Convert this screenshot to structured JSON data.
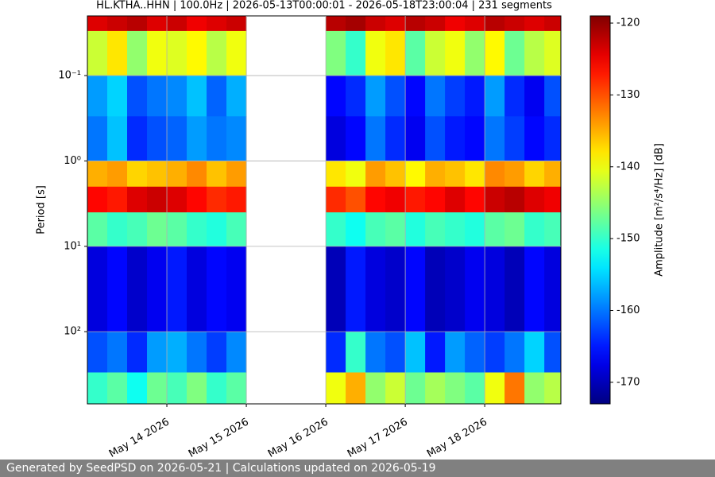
{
  "chart_data": {
    "type": "heatmap",
    "title": "HL.KTHA..HHN | 100.0Hz | 2026-05-13T00:00:01 - 2026-05-18T23:00:04 | 231 segments",
    "ylabel": "Period [s]",
    "xlim": [
      "2026-05-13T00:00:01",
      "2026-05-18T23:00:04"
    ],
    "xticks": [
      {
        "value": "2026-05-14",
        "label": "May 14 2026"
      },
      {
        "value": "2026-05-15",
        "label": "May 15 2026"
      },
      {
        "value": "2026-05-16",
        "label": "May 16 2026"
      },
      {
        "value": "2026-05-17",
        "label": "May 17 2026"
      },
      {
        "value": "2026-05-18",
        "label": "May 18 2026"
      }
    ],
    "x": [
      "2026-05-13T00:00",
      "2026-05-13T06:00",
      "2026-05-13T12:00",
      "2026-05-13T18:00",
      "2026-05-14T00:00",
      "2026-05-14T06:00",
      "2026-05-14T12:00",
      "2026-05-14T18:00",
      "2026-05-15T00:00",
      "2026-05-15T06:00",
      "2026-05-15T12:00",
      "2026-05-15T18:00",
      "2026-05-16T00:00",
      "2026-05-16T06:00",
      "2026-05-16T12:00",
      "2026-05-16T18:00",
      "2026-05-17T00:00",
      "2026-05-17T06:00",
      "2026-05-17T12:00",
      "2026-05-17T18:00",
      "2026-05-18T00:00",
      "2026-05-18T06:00",
      "2026-05-18T12:00",
      "2026-05-18T18:00"
    ],
    "y": [
      0.02,
      0.03,
      0.1,
      0.3,
      1,
      2,
      4,
      10,
      100,
      300,
      700
    ],
    "values": [
      [
        -124,
        -123,
        -122,
        -124,
        -123,
        -125,
        -124,
        -123,
        null,
        null,
        null,
        null,
        -122,
        -121,
        -123,
        -124,
        -122,
        -123,
        -125,
        -124,
        -122,
        -123,
        -124,
        -123
      ],
      [
        -142,
        -138,
        -145,
        -140,
        -141,
        -139,
        -143,
        -140,
        null,
        null,
        null,
        null,
        -146,
        -150,
        -140,
        -138,
        -148,
        -142,
        -140,
        -145,
        -139,
        -147,
        -143,
        -141
      ],
      [
        -158,
        -155,
        -162,
        -160,
        -159,
        -156,
        -161,
        -157,
        null,
        null,
        null,
        null,
        -166,
        -164,
        -158,
        -162,
        -166,
        -160,
        -163,
        -165,
        -158,
        -164,
        -167,
        -162
      ],
      [
        -160,
        -156,
        -164,
        -162,
        -161,
        -158,
        -160,
        -159,
        null,
        null,
        null,
        null,
        -168,
        -166,
        -160,
        -164,
        -167,
        -162,
        -165,
        -166,
        -160,
        -163,
        -166,
        -164
      ],
      [
        -135,
        -134,
        -137,
        -136,
        -135,
        -133,
        -136,
        -134,
        null,
        null,
        null,
        null,
        -138,
        -140,
        -134,
        -136,
        -139,
        -135,
        -136,
        -138,
        -133,
        -134,
        -137,
        -135
      ],
      [
        -126,
        -127,
        -124,
        -123,
        -124,
        -126,
        -128,
        -127,
        null,
        null,
        null,
        null,
        -128,
        -130,
        -126,
        -125,
        -127,
        -126,
        -124,
        -126,
        -123,
        -122,
        -124,
        -125
      ],
      [
        -148,
        -150,
        -149,
        -147,
        -148,
        -150,
        -151,
        -149,
        null,
        null,
        null,
        null,
        -150,
        -152,
        -149,
        -148,
        -151,
        -149,
        -150,
        -151,
        -148,
        -147,
        -150,
        -149
      ],
      [
        -168,
        -166,
        -169,
        -167,
        -165,
        -168,
        -166,
        -167,
        null,
        null,
        null,
        null,
        -170,
        -165,
        -168,
        -169,
        -166,
        -170,
        -169,
        -167,
        -168,
        -170,
        -166,
        -168
      ],
      [
        -162,
        -160,
        -164,
        -158,
        -157,
        -160,
        -163,
        -159,
        null,
        null,
        null,
        null,
        -164,
        -150,
        -160,
        -162,
        -156,
        -165,
        -158,
        -161,
        -163,
        -160,
        -155,
        -162
      ],
      [
        -150,
        -148,
        -152,
        -147,
        -149,
        -146,
        -150,
        -148,
        null,
        null,
        null,
        null,
        -140,
        -135,
        -145,
        -142,
        -147,
        -144,
        -146,
        -148,
        -140,
        -132,
        -145,
        -143
      ]
    ],
    "ylim": [
      0.02,
      700
    ],
    "log_y": true,
    "invert_y": true,
    "yticks": [
      {
        "value": 0.1,
        "label": "10⁻¹"
      },
      {
        "value": 1,
        "label": "10⁰"
      },
      {
        "value": 10,
        "label": "10¹"
      },
      {
        "value": 100,
        "label": "10²"
      }
    ],
    "grid": true,
    "colorbar": {
      "label": "Amplitude [m²/s⁴/Hz] [dB]",
      "colormap": "jet",
      "lim": [
        -173,
        -119
      ],
      "ticks": [
        -120,
        -130,
        -140,
        -150,
        -160,
        -170
      ]
    }
  },
  "footer": "Generated by SeedPSD on 2026-05-21 | Calculations updated on 2026-05-19"
}
